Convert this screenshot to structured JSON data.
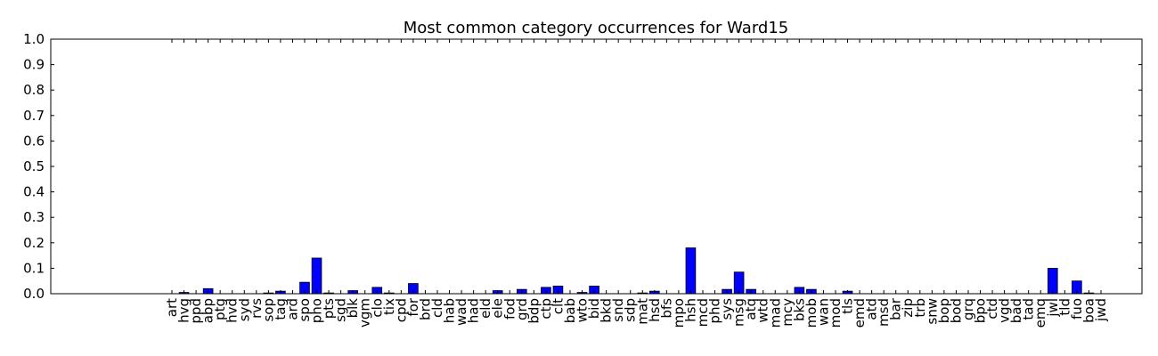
{
  "chart_data": {
    "type": "bar",
    "title": "Most common category occurrences for Ward15",
    "xlabel": "",
    "ylabel": "",
    "ylim": [
      0,
      1.0
    ],
    "yticks": [
      "0.0",
      "0.1",
      "0.2",
      "0.3",
      "0.4",
      "0.5",
      "0.6",
      "0.7",
      "0.8",
      "0.9",
      "1.0"
    ],
    "grid": false,
    "bar_color": "#0000ff",
    "categories": [
      "art",
      "hvg",
      "ppd",
      "abp",
      "ptg",
      "hvd",
      "syd",
      "rvs",
      "sop",
      "tag",
      "ard",
      "spo",
      "pho",
      "pts",
      "sgd",
      "blk",
      "vgm",
      "clo",
      "tix",
      "cpd",
      "for",
      "brd",
      "cld",
      "hab",
      "wad",
      "had",
      "eld",
      "ele",
      "fod",
      "grd",
      "bdp",
      "ctp",
      "clt",
      "bab",
      "wto",
      "bid",
      "bkd",
      "snd",
      "sdp",
      "mat",
      "hsd",
      "bfs",
      "mpo",
      "hsh",
      "mcd",
      "phd",
      "sys",
      "msg",
      "atq",
      "wtd",
      "mad",
      "mcy",
      "bks",
      "mob",
      "wan",
      "mod",
      "tls",
      "emd",
      "atd",
      "msd",
      "bar",
      "zip",
      "trb",
      "snw",
      "bop",
      "bod",
      "grq",
      "bpo",
      "ctd",
      "vgd",
      "bad",
      "tad",
      "emq",
      "jwl",
      "tld",
      "fuo",
      "boa",
      "jwd"
    ],
    "values": [
      0,
      0.005,
      0,
      0.02,
      0,
      0,
      0,
      0,
      0.003,
      0.01,
      0,
      0.045,
      0.14,
      0.003,
      0,
      0.012,
      0,
      0.025,
      0.003,
      0,
      0.04,
      0,
      0,
      0,
      0,
      0,
      0,
      0.012,
      0,
      0.017,
      0,
      0.025,
      0.03,
      0,
      0.005,
      0.03,
      0,
      0,
      0,
      0.003,
      0.01,
      0,
      0,
      0.18,
      0,
      0,
      0.017,
      0.085,
      0.017,
      0,
      0,
      0,
      0.025,
      0.017,
      0,
      0,
      0.01,
      0,
      0,
      0,
      0,
      0,
      0,
      0,
      0,
      0,
      0,
      0,
      0,
      0,
      0,
      0,
      0,
      0.1,
      0,
      0.05,
      0.003,
      0
    ]
  }
}
